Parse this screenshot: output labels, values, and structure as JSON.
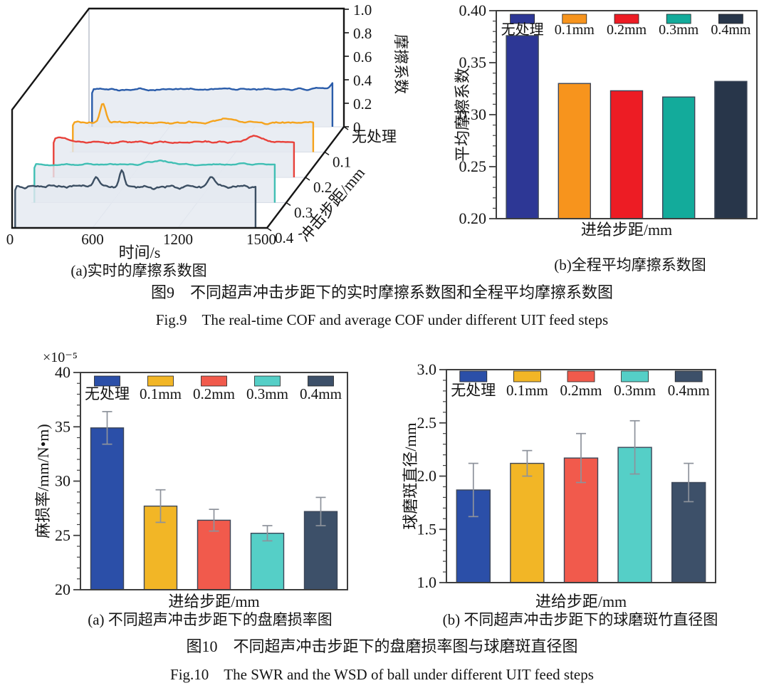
{
  "figure9": {
    "caption_cn": "图9　不同超声冲击步距下的实时摩擦系数图和全程平均摩擦系数图",
    "caption_en": "Fig.9　The real-time COF and average COF under different UIT feed steps"
  },
  "figure10": {
    "caption_cn": "图10　不同超声冲击步距下的盘磨损率图与球磨斑直径图",
    "caption_en": "Fig.10　The SWR and the WSD of ball under different UIT feed steps"
  },
  "chart_data": [
    {
      "id": "realtime_cof",
      "type": "line",
      "variant": "3d-waterfall",
      "title": "(a)实时的摩擦系数图",
      "xlabel": "时间/s",
      "x_ticks": [
        "0",
        "600",
        "1200",
        "1500"
      ],
      "zlabel": "摩擦系数",
      "z_ticks": [
        0,
        0.2,
        0.4,
        0.6,
        0.8,
        1.0
      ],
      "zlim": [
        0,
        1.0
      ],
      "depth_label": "冲击步距/mm",
      "depth_categories": [
        "无处理",
        "0.1",
        "0.2",
        "0.3",
        "0.4"
      ],
      "series": [
        {
          "name": "无处理",
          "color": "#2a5caa",
          "mean_cof": 0.32,
          "noise": 0.018,
          "spikes": [
            {
              "t": 0.96,
              "amp": 0.05,
              "w": 0.015
            }
          ]
        },
        {
          "name": "0.1",
          "color": "#f5a31d",
          "mean_cof": 0.25,
          "noise": 0.02,
          "spikes": [
            {
              "t": 0.13,
              "amp": 0.17,
              "w": 0.016
            },
            {
              "t": 0.62,
              "amp": 0.03,
              "w": 0.05
            }
          ]
        },
        {
          "name": "0.2",
          "color": "#e8413a",
          "mean_cof": 0.3,
          "noise": 0.02,
          "spikes": [
            {
              "t": 0.04,
              "amp": 0.05,
              "w": 0.03
            },
            {
              "t": 0.8,
              "amp": 0.05,
              "w": 0.04
            }
          ]
        },
        {
          "name": "0.3",
          "color": "#41bfb4",
          "mean_cof": 0.325,
          "noise": 0.014,
          "spikes": [
            {
              "t": 0.5,
              "amp": 0.03,
              "w": 0.06
            }
          ]
        },
        {
          "name": "0.4",
          "color": "#3c4f63",
          "mean_cof": 0.355,
          "noise": 0.032,
          "spikes": [
            {
              "t": 0.33,
              "amp": 0.1,
              "w": 0.016
            },
            {
              "t": 0.43,
              "amp": 0.14,
              "w": 0.013
            },
            {
              "t": 0.78,
              "amp": 0.08,
              "w": 0.02
            }
          ]
        }
      ]
    },
    {
      "id": "avg_cof",
      "type": "bar",
      "title": "(b)全程平均摩擦系数图",
      "xlabel": "进给步距/mm",
      "ylabel": "平均摩擦系数",
      "categories": [
        "无处理",
        "0.1mm",
        "0.2mm",
        "0.3mm",
        "0.4mm"
      ],
      "values": [
        0.376,
        0.33,
        0.323,
        0.317,
        0.332
      ],
      "colors": [
        "#2d3795",
        "#f7941d",
        "#ed1c24",
        "#13ab9b",
        "#28364a"
      ],
      "ylim": [
        0.2,
        0.4
      ],
      "yticks": [
        0.2,
        0.25,
        0.3,
        0.35,
        0.4
      ],
      "y_decimals": 2,
      "minor_step": 0.01,
      "grid": false,
      "legend_position": "top-inside"
    },
    {
      "id": "disc_wear_rate",
      "type": "bar",
      "title": "(a) 不同超声冲击步距下的盘磨损率图",
      "xlabel": "进给步距/mm",
      "ylabel": "麻损率/mm/N•m)",
      "y_multiplier": "×10⁻⁵",
      "categories": [
        "无处理",
        "0.1mm",
        "0.2mm",
        "0.3mm",
        "0.4mm"
      ],
      "values": [
        34.9,
        27.7,
        26.4,
        25.2,
        27.2
      ],
      "errors": [
        1.5,
        1.5,
        1.0,
        0.7,
        1.3
      ],
      "colors": [
        "#2b4fa8",
        "#f2b626",
        "#f15a4c",
        "#55cfc7",
        "#3d5069"
      ],
      "ylim": [
        20,
        40
      ],
      "yticks": [
        20,
        25,
        30,
        35,
        40
      ],
      "y_decimals": 0,
      "minor_step": 1,
      "grid": false,
      "legend_position": "top-inside"
    },
    {
      "id": "ball_wsd",
      "type": "bar",
      "title": "(b) 不同超声冲击步距下的球磨斑竹直径图",
      "xlabel": "进给步距/mm",
      "ylabel": "球磨斑直径/mm",
      "categories": [
        "无处理",
        "0.1mm",
        "0.2mm",
        "0.3mm",
        "0.4mm"
      ],
      "values": [
        1.87,
        2.12,
        2.17,
        2.27,
        1.94
      ],
      "errors": [
        0.25,
        0.12,
        0.23,
        0.25,
        0.18
      ],
      "colors": [
        "#2b4fa8",
        "#f2b626",
        "#f15a4c",
        "#55cfc7",
        "#3d5069"
      ],
      "ylim": [
        1.0,
        3.0
      ],
      "yticks": [
        1.0,
        1.5,
        2.0,
        2.5,
        3.0
      ],
      "y_decimals": 1,
      "minor_step": 0.1,
      "grid": false,
      "legend_position": "top-inside"
    }
  ]
}
